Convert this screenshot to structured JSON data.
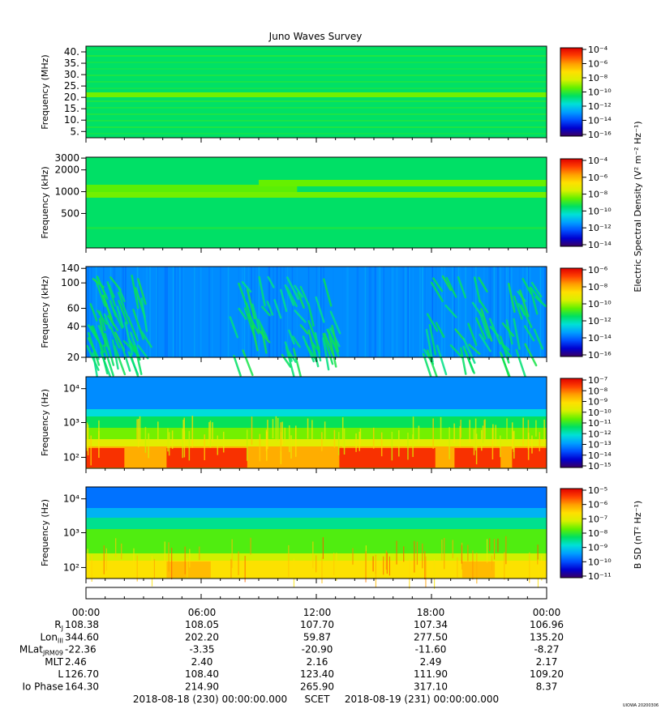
{
  "title": "Juno Waves Survey",
  "footer_stamp": "UIOWA 20200306",
  "colors": {
    "background": "#ffffff",
    "axis": "#000000",
    "colorscale": [
      "#3a0063",
      "#0000d0",
      "#0050ff",
      "#00a0ff",
      "#00e0d8",
      "#00e060",
      "#60f000",
      "#d8f000",
      "#ffe000",
      "#ffa000",
      "#ff4000",
      "#e00000"
    ]
  },
  "colorbar_titles": {
    "electric": "Electric Spectral Density (V² m⁻² Hz⁻¹)",
    "magnetic": "B SD (nT² Hz⁻¹)"
  },
  "chart_data": [
    {
      "type": "heatmap",
      "panel": "HFR high",
      "ylabel": "Frequency (MHz)",
      "yticks": [
        "40.",
        "35.",
        "30.",
        "25.",
        "20.",
        "15.",
        "10.",
        "5."
      ],
      "background_level": 0.45,
      "features": [
        {
          "kind": "band",
          "center": "21 MHz",
          "level": 0.56
        }
      ],
      "colorbar": {
        "ticks": [
          "10⁻⁴",
          "10⁻⁶",
          "10⁻⁸",
          "10⁻¹⁰",
          "10⁻¹²",
          "10⁻¹⁴",
          "10⁻¹⁶"
        ]
      }
    },
    {
      "type": "heatmap",
      "panel": "HFR low",
      "ylabel": "Frequency (kHz)",
      "yticks": [
        "3000",
        "2000",
        "1000",
        "500"
      ],
      "background_level": 0.45,
      "features": [
        {
          "kind": "band",
          "center": "1200 kHz",
          "level": 0.55
        },
        {
          "kind": "band",
          "center": "800 kHz",
          "level": 0.56
        }
      ],
      "colorbar": {
        "ticks": [
          "10⁻⁴",
          "10⁻⁶",
          "10⁻⁸",
          "10⁻¹⁰",
          "10⁻¹²",
          "10⁻¹⁴"
        ]
      }
    },
    {
      "type": "heatmap",
      "panel": "LFR high",
      "ylabel": "Frequency (kHz)",
      "yticks": [
        "140",
        "100",
        "60",
        "40",
        "20"
      ],
      "background_level": 0.25,
      "features": [
        {
          "kind": "emission",
          "start": "00:00",
          "end": "03:00",
          "level": 0.42
        },
        {
          "kind": "emission",
          "start": "07:30",
          "end": "12:50",
          "level": 0.42
        },
        {
          "kind": "emission",
          "start": "17:30",
          "end": "23:30",
          "level": 0.42
        }
      ],
      "colorbar": {
        "ticks": [
          "10⁻⁶",
          "10⁻⁸",
          "10⁻¹⁰",
          "10⁻¹²",
          "10⁻¹⁴",
          "10⁻¹⁶"
        ]
      }
    },
    {
      "type": "heatmap",
      "panel": "LFR electric",
      "ylabel": "Frequency (Hz)",
      "yticks": [
        "10⁴",
        "10³",
        "10²"
      ],
      "background_level": 0.3,
      "colorbar": {
        "ticks": [
          "10⁻⁷",
          "10⁻⁸",
          "10⁻⁹",
          "10⁻¹⁰",
          "10⁻¹¹",
          "10⁻¹²",
          "10⁻¹³",
          "10⁻¹⁴",
          "10⁻¹⁵"
        ]
      }
    },
    {
      "type": "heatmap",
      "panel": "LFR magnetic",
      "ylabel": "Frequency (Hz)",
      "yticks": [
        "10⁴",
        "10³",
        "10²"
      ],
      "background_level": 0.3,
      "colorbar": {
        "ticks": [
          "10⁻⁵",
          "10⁻⁶",
          "10⁻⁷",
          "10⁻⁸",
          "10⁻⁹",
          "10⁻¹⁰",
          "10⁻¹¹"
        ]
      }
    }
  ],
  "ephemeris": {
    "times": [
      "00:00",
      "06:00",
      "12:00",
      "18:00",
      "00:00"
    ],
    "rows": [
      {
        "label": "R_J",
        "values": [
          "108.38",
          "108.05",
          "107.70",
          "107.34",
          "106.96"
        ]
      },
      {
        "label": "Lon_III",
        "values": [
          "344.60",
          "202.20",
          "59.87",
          "277.50",
          "135.20"
        ]
      },
      {
        "label": "MLat_JRM09",
        "values": [
          "-22.36",
          "-3.35",
          "-20.90",
          "-11.60",
          "-8.27"
        ]
      },
      {
        "label": "MLT",
        "values": [
          "2.46",
          "2.40",
          "2.16",
          "2.49",
          "2.17"
        ]
      },
      {
        "label": "L",
        "values": [
          "126.70",
          "108.40",
          "123.40",
          "111.90",
          "109.20"
        ]
      },
      {
        "label": "Io Phase",
        "values": [
          "164.30",
          "214.90",
          "265.90",
          "317.10",
          "8.37"
        ]
      }
    ]
  },
  "time_range": {
    "start": "2018-08-18 (230) 00:00:00.000",
    "center": "SCET",
    "end": "2018-08-19 (231) 00:00:00.000"
  }
}
